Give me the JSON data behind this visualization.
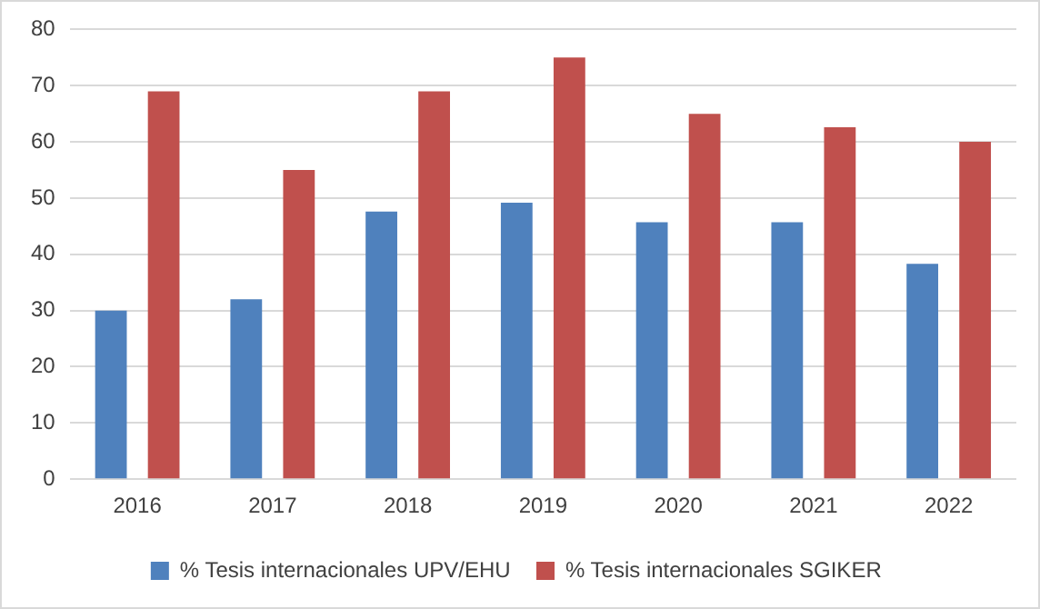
{
  "chart_data": {
    "type": "bar",
    "categories": [
      "2016",
      "2017",
      "2018",
      "2019",
      "2020",
      "2021",
      "2022"
    ],
    "series": [
      {
        "name": "% Tesis internacionales UPV/EHU",
        "color": "#4f81bd",
        "values": [
          30,
          32,
          47.6,
          49.2,
          45.7,
          45.7,
          38.3
        ]
      },
      {
        "name": "% Tesis internacionales SGIKER",
        "color": "#c0504d",
        "values": [
          69,
          55,
          69,
          75,
          65,
          62.6,
          60
        ]
      }
    ],
    "ylim": [
      0,
      80
    ],
    "yticks": [
      0,
      10,
      20,
      30,
      40,
      50,
      60,
      70,
      80
    ],
    "grid": "y",
    "legend": "bottom"
  }
}
